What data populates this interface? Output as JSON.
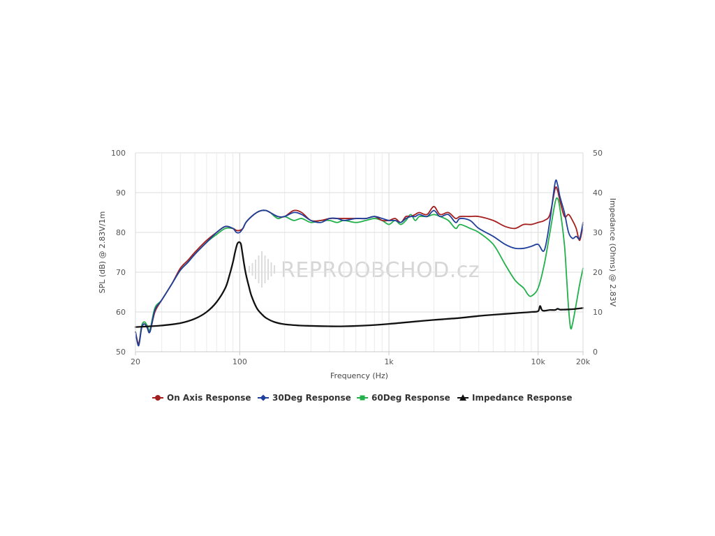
{
  "chart_data": {
    "type": "line",
    "title": "",
    "xlabel": "Frequency (Hz)",
    "ylabel": "SPL (dB) @ 2.83V/1m",
    "y2label": "Impedance (Ohms) @ 2.83V",
    "x_scale": "log",
    "xlim": [
      20,
      20000
    ],
    "ylim": [
      50,
      100
    ],
    "y2lim": [
      0,
      50
    ],
    "grid": true,
    "legend_position": "bottom",
    "x_tick_labels": [
      "20",
      "100",
      "1k",
      "10k",
      "20k"
    ],
    "y_tick_labels": [
      "100",
      "90",
      "80",
      "70",
      "60",
      "50"
    ],
    "y2_tick_labels": [
      "50",
      "40",
      "30",
      "20",
      "10",
      "0"
    ],
    "watermark": "REPROOBCHOD.cz",
    "series": [
      {
        "name": "On Axis Response",
        "axis": "left",
        "color": "#a51e1e",
        "marker": "circle",
        "x": [
          20,
          21,
          22,
          23,
          24,
          25,
          27,
          30,
          35,
          40,
          45,
          50,
          60,
          70,
          80,
          90,
          95,
          100,
          105,
          110,
          120,
          130,
          140,
          150,
          160,
          180,
          200,
          230,
          260,
          300,
          350,
          400,
          450,
          500,
          600,
          700,
          800,
          900,
          1000,
          1100,
          1200,
          1300,
          1400,
          1500,
          1600,
          1800,
          2000,
          2200,
          2500,
          2800,
          3000,
          3500,
          4000,
          5000,
          6000,
          7000,
          8000,
          9000,
          10000,
          11000,
          12000,
          13000,
          13500,
          14000,
          15000,
          16000,
          17000,
          18000,
          19000,
          20000
        ],
        "y": [
          55,
          52,
          56,
          57,
          56,
          55,
          60,
          63,
          67,
          71,
          73,
          75,
          78,
          80,
          81.5,
          81,
          80.5,
          80.5,
          81,
          82.5,
          84,
          85,
          85.5,
          85.5,
          85,
          84,
          84,
          85.5,
          85,
          83,
          83,
          83.5,
          83.5,
          83.5,
          83.5,
          83.5,
          84,
          83,
          83,
          83.5,
          82.5,
          84,
          84,
          84.5,
          85,
          84.5,
          86.5,
          84.5,
          85,
          83.5,
          84,
          84,
          84,
          83,
          81.5,
          81,
          82,
          82,
          82.5,
          83,
          84.5,
          91,
          90.5,
          88,
          84,
          84.5,
          83,
          81,
          78,
          82
        ]
      },
      {
        "name": "30Deg Response",
        "axis": "left",
        "color": "#1f3f9c",
        "marker": "diamond",
        "x": [
          20,
          21,
          22,
          23,
          24,
          25,
          27,
          30,
          35,
          40,
          45,
          50,
          60,
          70,
          80,
          90,
          95,
          100,
          105,
          110,
          120,
          130,
          140,
          150,
          160,
          180,
          200,
          230,
          260,
          300,
          350,
          400,
          450,
          500,
          600,
          700,
          800,
          900,
          1000,
          1100,
          1200,
          1300,
          1400,
          1500,
          1600,
          1800,
          2000,
          2200,
          2500,
          2800,
          3000,
          3500,
          4000,
          5000,
          6000,
          7000,
          8000,
          9000,
          10000,
          11000,
          12000,
          13000,
          13500,
          14000,
          15000,
          16000,
          17000,
          18000,
          19000,
          20000
        ],
        "y": [
          55,
          51.5,
          56,
          57,
          56,
          55,
          60.5,
          63,
          67,
          70.5,
          72.5,
          74.5,
          77.5,
          80,
          81.5,
          81,
          80,
          80,
          81,
          82.5,
          84,
          85,
          85.5,
          85.5,
          85,
          84,
          84,
          85,
          84.5,
          83,
          82.5,
          83.5,
          83.5,
          83,
          83.5,
          83.5,
          84,
          83.5,
          83,
          83,
          82.5,
          83.5,
          84,
          84,
          84.5,
          84,
          85.5,
          84,
          84.5,
          82.5,
          83.5,
          83,
          81,
          79,
          77,
          76,
          76,
          76.5,
          77,
          75.5,
          83,
          92.5,
          92,
          89,
          85,
          80,
          78.5,
          79,
          78.5,
          82.5
        ]
      },
      {
        "name": "60Deg Response",
        "axis": "left",
        "color": "#21b04a",
        "marker": "square",
        "x": [
          20,
          21,
          22,
          23,
          24,
          25,
          27,
          30,
          35,
          40,
          45,
          50,
          60,
          70,
          80,
          90,
          95,
          100,
          105,
          110,
          120,
          130,
          140,
          150,
          160,
          180,
          200,
          230,
          260,
          300,
          350,
          400,
          450,
          500,
          600,
          700,
          800,
          900,
          1000,
          1100,
          1200,
          1300,
          1400,
          1500,
          1600,
          1800,
          2000,
          2200,
          2500,
          2800,
          3000,
          3500,
          4000,
          5000,
          6000,
          7000,
          8000,
          8500,
          9000,
          10000,
          11000,
          12000,
          13000,
          13500,
          14000,
          15000,
          15500,
          16000,
          16500,
          17000,
          18000,
          19000,
          20000
        ],
        "y": [
          55,
          52,
          56.5,
          57.5,
          56.5,
          55.5,
          61,
          63,
          67,
          70.5,
          72.5,
          74.5,
          77.5,
          79.5,
          81,
          81,
          80.5,
          80.5,
          81,
          82.5,
          84,
          85,
          85.5,
          85.5,
          85,
          83.5,
          84,
          83,
          83.5,
          82.5,
          83,
          83,
          82.5,
          83,
          82.5,
          83,
          83.5,
          83,
          82,
          83,
          82,
          83,
          84.5,
          83,
          84,
          84,
          84.5,
          84,
          83,
          81,
          82,
          81,
          80,
          77,
          72,
          68,
          66,
          64.5,
          64,
          66,
          72,
          80,
          87.5,
          88.5,
          86,
          77,
          69,
          61,
          56,
          57,
          62,
          67,
          71
        ]
      },
      {
        "name": "Impedance Response",
        "axis": "right",
        "color": "#111111",
        "marker": "triangle",
        "x": [
          20,
          25,
          30,
          40,
          50,
          60,
          70,
          80,
          85,
          90,
          93,
          96,
          98,
          100,
          102,
          104,
          107,
          110,
          115,
          120,
          130,
          140,
          150,
          170,
          200,
          250,
          300,
          400,
          500,
          700,
          1000,
          1500,
          2000,
          3000,
          4000,
          5000,
          7000,
          9000,
          10000,
          10300,
          10600,
          11000,
          12000,
          13000,
          13500,
          14000,
          15000,
          17000,
          20000
        ],
        "y": [
          6.2,
          6.4,
          6.6,
          7.2,
          8.3,
          10,
          12.5,
          16,
          19,
          22.5,
          25,
          27,
          27.5,
          27.5,
          27,
          25,
          22,
          19.5,
          16.5,
          14,
          11,
          9.5,
          8.5,
          7.5,
          6.9,
          6.6,
          6.5,
          6.4,
          6.4,
          6.6,
          7,
          7.6,
          8,
          8.5,
          9,
          9.3,
          9.7,
          10,
          10.2,
          11.5,
          10.5,
          10.3,
          10.5,
          10.5,
          10.8,
          10.6,
          10.6,
          10.7,
          11
        ]
      }
    ]
  }
}
